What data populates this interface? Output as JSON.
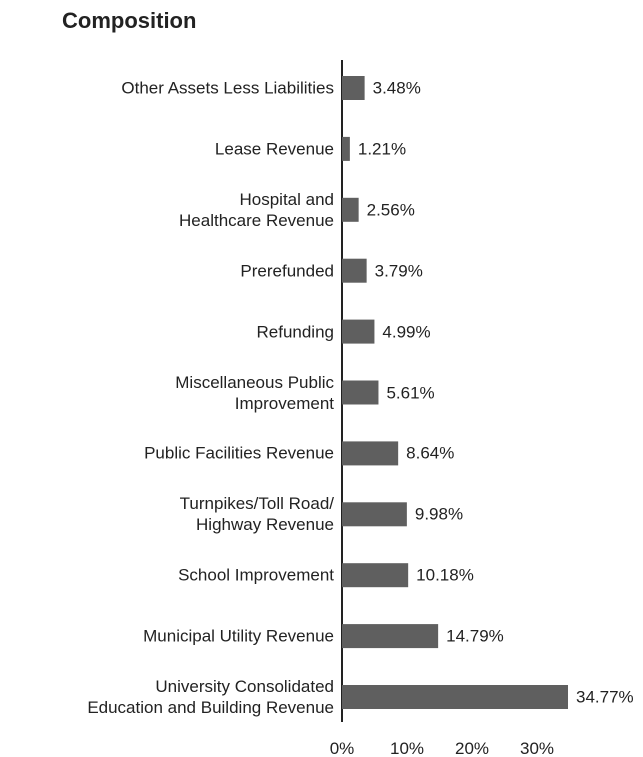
{
  "chart_data": {
    "type": "bar",
    "orientation": "horizontal",
    "title": "Composition",
    "categories": [
      "Other Assets Less Liabilities",
      "Lease Revenue",
      "Hospital and\nHealthcare Revenue",
      "Prerefunded",
      "Refunding",
      "Miscellaneous Public\nImprovement",
      "Public Facilities Revenue",
      "Turnpikes/Toll Road/\nHighway Revenue",
      "School Improvement",
      "Municipal Utility Revenue",
      "University Consolidated\nEducation and Building Revenue"
    ],
    "values": [
      3.48,
      1.21,
      2.56,
      3.79,
      4.99,
      5.61,
      8.64,
      9.98,
      10.18,
      14.79,
      34.77
    ],
    "value_labels": [
      "3.48%",
      "1.21%",
      "2.56%",
      "3.79%",
      "4.99%",
      "5.61%",
      "8.64%",
      "9.98%",
      "10.18%",
      "14.79%",
      "34.77%"
    ],
    "color": "#5f5f5f",
    "xlim": [
      0,
      40
    ],
    "xticks": [
      {
        "value": 0,
        "label": "0%"
      },
      {
        "value": 10,
        "label": "10%"
      },
      {
        "value": 20,
        "label": "20%"
      },
      {
        "value": 30,
        "label": "30%"
      }
    ],
    "grid": false
  }
}
